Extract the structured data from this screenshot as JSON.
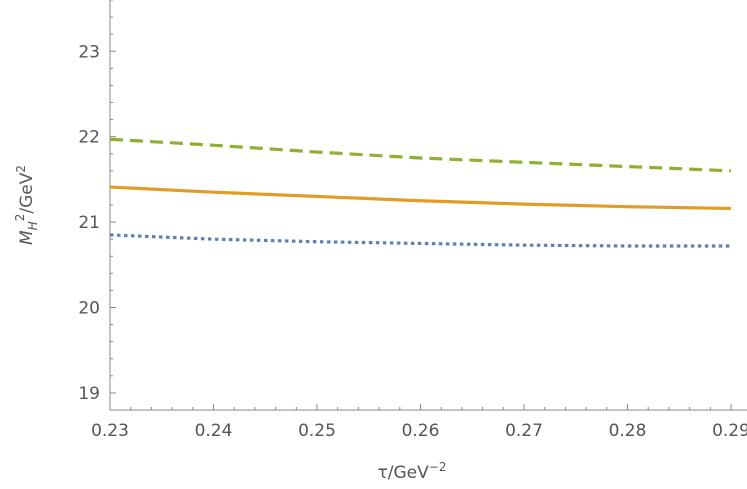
{
  "chart_data": {
    "type": "line",
    "title": "",
    "xlabel": {
      "base": "τ/GeV",
      "sup": "−2"
    },
    "ylabel": {
      "m": "M",
      "sub": "H",
      "sup1": "2",
      "rest": "/GeV",
      "sup2": "2"
    },
    "xlim": [
      0.23,
      0.29
    ],
    "ylim": [
      18.8,
      23.6
    ],
    "x_ticks": [
      "0.23",
      "0.24",
      "0.25",
      "0.26",
      "0.27",
      "0.28",
      "0.29"
    ],
    "y_ticks": [
      "19",
      "20",
      "21",
      "22",
      "23"
    ],
    "grid": false,
    "legend": "none",
    "x": [
      0.23,
      0.24,
      0.25,
      0.26,
      0.27,
      0.28,
      0.29
    ],
    "series": [
      {
        "style": "dashed",
        "color": "#8fb032",
        "values": [
          21.97,
          21.9,
          21.82,
          21.75,
          21.7,
          21.65,
          21.6
        ]
      },
      {
        "style": "solid",
        "color": "#e19c24",
        "values": [
          21.41,
          21.35,
          21.3,
          21.25,
          21.21,
          21.18,
          21.16
        ]
      },
      {
        "style": "dotted",
        "color": "#5e81b5",
        "values": [
          20.85,
          20.8,
          20.77,
          20.75,
          20.73,
          20.72,
          20.72
        ]
      }
    ]
  }
}
